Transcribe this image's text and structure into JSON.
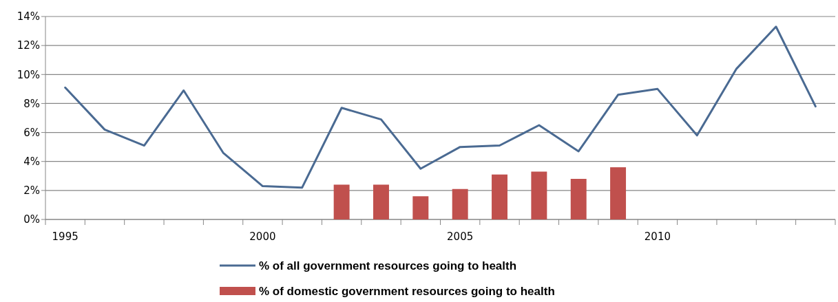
{
  "chart_data": {
    "type": "line",
    "categories": [
      "1995",
      null,
      null,
      null,
      null,
      "2000",
      null,
      null,
      null,
      null,
      "2005",
      null,
      null,
      null,
      null,
      "2010",
      null,
      null,
      null,
      null
    ],
    "series": [
      {
        "name": "% of all government resources going to health",
        "color": "#4a6a92",
        "values": [
          9.1,
          6.2,
          5.1,
          8.9,
          4.6,
          2.3,
          2.2,
          7.7,
          6.9,
          3.5,
          5.0,
          5.1,
          6.5,
          4.7,
          8.6,
          9.0,
          5.8,
          10.4,
          13.3,
          7.8
        ]
      },
      {
        "name": "% of domestic government resources going to health",
        "type": "bar",
        "color": "#c0504d",
        "values": [
          null,
          null,
          null,
          null,
          null,
          null,
          null,
          2.4,
          2.4,
          1.6,
          2.1,
          3.1,
          3.3,
          2.8,
          3.6,
          null,
          null,
          null,
          null,
          null
        ]
      }
    ],
    "ylim": [
      0,
      14
    ],
    "yticks": [
      {
        "value": 0,
        "label": "0%"
      },
      {
        "value": 2,
        "label": "2%"
      },
      {
        "value": 4,
        "label": "4%"
      },
      {
        "value": 6,
        "label": "6%"
      },
      {
        "value": 8,
        "label": "8%"
      },
      {
        "value": 10,
        "label": "10%"
      },
      {
        "value": 12,
        "label": "12%"
      },
      {
        "value": 14,
        "label": "14%"
      }
    ],
    "grid": "y",
    "legend": "bottom"
  }
}
